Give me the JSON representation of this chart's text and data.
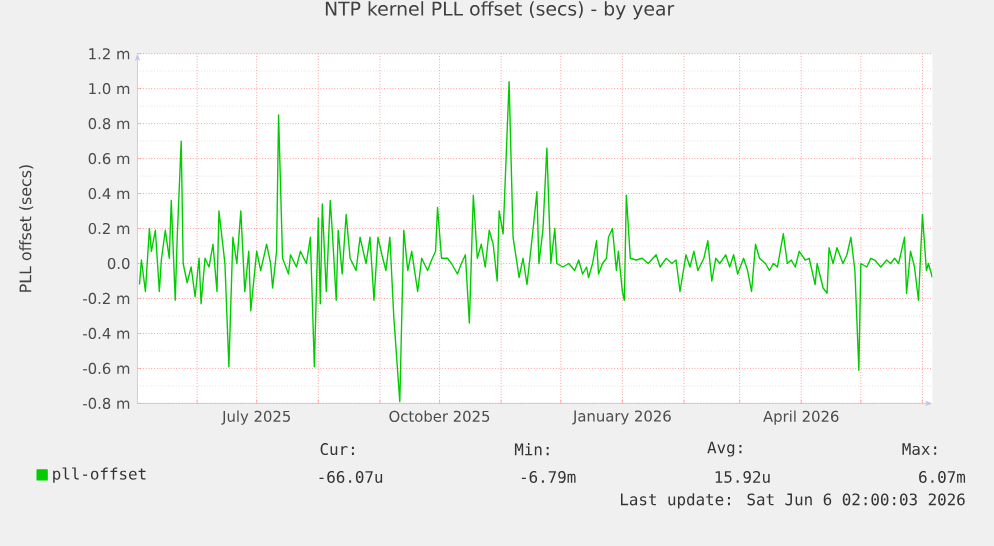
{
  "chart_data": {
    "type": "line",
    "title": "NTP kernel PLL offset (secs) - by year",
    "ylabel": "PLL offset (secs)",
    "x": [
      "2025-05-03",
      "2025-05-04",
      "2025-05-06",
      "2025-05-08",
      "2025-05-09",
      "2025-05-11",
      "2025-05-13",
      "2025-05-14",
      "2025-05-16",
      "2025-05-18",
      "2025-05-19",
      "2025-05-21",
      "2025-05-22",
      "2025-05-24",
      "2025-05-25",
      "2025-05-27",
      "2025-05-29",
      "2025-05-31",
      "2025-06-02",
      "2025-06-03",
      "2025-06-05",
      "2025-06-07",
      "2025-06-09",
      "2025-06-11",
      "2025-06-12",
      "2025-06-15",
      "2025-06-17",
      "2025-06-19",
      "2025-06-21",
      "2025-06-23",
      "2025-06-25",
      "2025-06-27",
      "2025-06-28",
      "2025-07-01",
      "2025-07-03",
      "2025-07-06",
      "2025-07-08",
      "2025-07-09",
      "2025-07-11",
      "2025-07-12",
      "2025-07-14",
      "2025-07-17",
      "2025-07-18",
      "2025-07-21",
      "2025-07-23",
      "2025-07-26",
      "2025-07-28",
      "2025-07-30",
      "2025-08-01",
      "2025-08-02",
      "2025-08-03",
      "2025-08-05",
      "2025-08-07",
      "2025-08-08",
      "2025-08-10",
      "2025-08-11",
      "2025-08-13",
      "2025-08-15",
      "2025-08-17",
      "2025-08-20",
      "2025-08-22",
      "2025-08-25",
      "2025-08-27",
      "2025-08-29",
      "2025-08-31",
      "2025-09-02",
      "2025-09-04",
      "2025-09-06",
      "2025-09-08",
      "2025-09-11",
      "2025-09-13",
      "2025-09-15",
      "2025-09-17",
      "2025-09-20",
      "2025-09-22",
      "2025-09-25",
      "2025-09-27",
      "2025-09-29",
      "2025-09-30",
      "2025-10-02",
      "2025-10-05",
      "2025-10-07",
      "2025-10-10",
      "2025-10-12",
      "2025-10-14",
      "2025-10-16",
      "2025-10-18",
      "2025-10-20",
      "2025-10-22",
      "2025-10-24",
      "2025-10-26",
      "2025-10-28",
      "2025-10-30",
      "2025-10-31",
      "2025-11-02",
      "2025-11-05",
      "2025-11-07",
      "2025-11-09",
      "2025-11-10",
      "2025-11-12",
      "2025-11-14",
      "2025-11-15",
      "2025-11-17",
      "2025-11-19",
      "2025-11-20",
      "2025-11-22",
      "2025-11-24",
      "2025-11-26",
      "2025-11-28",
      "2025-11-29",
      "2025-12-02",
      "2025-12-05",
      "2025-12-08",
      "2025-12-10",
      "2025-12-12",
      "2025-12-14",
      "2025-12-15",
      "2025-12-17",
      "2025-12-19",
      "2025-12-20",
      "2025-12-22",
      "2025-12-24",
      "2025-12-25",
      "2025-12-27",
      "2025-12-29",
      "2025-12-30",
      "2026-01-01",
      "2026-01-02",
      "2026-01-03",
      "2026-01-05",
      "2026-01-08",
      "2026-01-11",
      "2026-01-14",
      "2026-01-18",
      "2026-01-20",
      "2026-01-23",
      "2026-01-26",
      "2026-01-28",
      "2026-01-30",
      "2026-02-02",
      "2026-02-04",
      "2026-02-06",
      "2026-02-08",
      "2026-02-11",
      "2026-02-13",
      "2026-02-15",
      "2026-02-17",
      "2026-02-19",
      "2026-02-22",
      "2026-02-24",
      "2026-02-26",
      "2026-02-28",
      "2026-03-03",
      "2026-03-05",
      "2026-03-07",
      "2026-03-09",
      "2026-03-11",
      "2026-03-14",
      "2026-03-16",
      "2026-03-18",
      "2026-03-20",
      "2026-03-23",
      "2026-03-25",
      "2026-03-27",
      "2026-03-29",
      "2026-03-31",
      "2026-04-03",
      "2026-04-05",
      "2026-04-08",
      "2026-04-09",
      "2026-04-12",
      "2026-04-14",
      "2026-04-15",
      "2026-04-17",
      "2026-04-19",
      "2026-04-22",
      "2026-04-24",
      "2026-04-26",
      "2026-04-28",
      "2026-04-30",
      "2026-05-01",
      "2026-05-04",
      "2026-05-06",
      "2026-05-08",
      "2026-05-11",
      "2026-05-14",
      "2026-05-16",
      "2026-05-18",
      "2026-05-20",
      "2026-05-23",
      "2026-05-24",
      "2026-05-26",
      "2026-05-28",
      "2026-05-30",
      "2026-06-01",
      "2026-06-03",
      "2026-06-04",
      "2026-06-06"
    ],
    "series": [
      {
        "name": "pll-offset",
        "color": "#00cc00",
        "values": [
          -0.12,
          0.02,
          -0.16,
          0.2,
          0.07,
          0.19,
          -0.16,
          0.02,
          0.19,
          0.03,
          0.36,
          -0.21,
          0.15,
          0.7,
          0.0,
          -0.11,
          -0.02,
          -0.19,
          0.03,
          -0.23,
          0.03,
          -0.02,
          0.11,
          -0.16,
          0.3,
          0.0,
          -0.59,
          0.15,
          0.0,
          0.3,
          -0.16,
          0.07,
          -0.27,
          0.07,
          -0.04,
          0.11,
          0.0,
          -0.14,
          0.07,
          0.85,
          0.03,
          -0.06,
          0.05,
          -0.02,
          0.07,
          0.0,
          0.15,
          -0.59,
          0.26,
          -0.23,
          0.34,
          -0.16,
          0.36,
          0.19,
          -0.21,
          0.19,
          -0.06,
          0.28,
          0.03,
          -0.04,
          0.15,
          0.0,
          0.15,
          -0.21,
          0.15,
          0.05,
          -0.04,
          0.15,
          -0.31,
          -0.79,
          0.19,
          -0.04,
          0.07,
          -0.16,
          0.03,
          -0.04,
          0.02,
          0.07,
          0.32,
          0.03,
          0.03,
          0.0,
          -0.06,
          0.0,
          0.05,
          -0.34,
          0.39,
          0.03,
          0.11,
          -0.02,
          0.19,
          0.11,
          -0.1,
          0.3,
          0.17,
          1.04,
          0.15,
          0.0,
          -0.08,
          0.03,
          -0.12,
          -0.02,
          0.19,
          0.41,
          0.0,
          0.19,
          0.66,
          0.0,
          0.2,
          0.0,
          -0.02,
          0.0,
          -0.04,
          0.02,
          -0.06,
          -0.02,
          -0.08,
          0.0,
          0.13,
          -0.06,
          0.0,
          0.03,
          0.15,
          0.2,
          -0.04,
          0.07,
          -0.16,
          -0.21,
          0.39,
          0.03,
          0.02,
          0.03,
          0.0,
          0.05,
          -0.02,
          0.03,
          0.0,
          0.02,
          -0.16,
          0.05,
          -0.02,
          0.07,
          -0.04,
          0.03,
          0.13,
          -0.1,
          0.03,
          0.0,
          0.05,
          -0.02,
          0.05,
          -0.06,
          0.03,
          -0.04,
          -0.16,
          0.11,
          0.03,
          0.0,
          -0.04,
          0.0,
          -0.02,
          0.17,
          0.0,
          0.02,
          -0.02,
          0.07,
          0.02,
          0.03,
          -0.12,
          0.0,
          -0.14,
          -0.17,
          0.09,
          0.0,
          0.09,
          0.0,
          0.05,
          0.15,
          -0.04,
          -0.61,
          0.0,
          -0.02,
          0.03,
          0.02,
          -0.02,
          0.02,
          0.0,
          0.03,
          0.0,
          0.15,
          -0.17,
          0.07,
          -0.02,
          -0.21,
          0.28,
          -0.04,
          0.0,
          -0.08
        ]
      }
    ],
    "xlim": [
      "2025-05-02",
      "2026-06-06"
    ],
    "xticks": [
      {
        "value": "2025-06-01",
        "label": null
      },
      {
        "value": "2025-07-01",
        "label": "July 2025"
      },
      {
        "value": "2025-08-01",
        "label": null
      },
      {
        "value": "2025-09-01",
        "label": null
      },
      {
        "value": "2025-10-01",
        "label": "October 2025"
      },
      {
        "value": "2025-11-01",
        "label": null
      },
      {
        "value": "2025-12-01",
        "label": null
      },
      {
        "value": "2026-01-01",
        "label": "January 2026"
      },
      {
        "value": "2026-02-01",
        "label": null
      },
      {
        "value": "2026-03-01",
        "label": null
      },
      {
        "value": "2026-04-01",
        "label": "April 2026"
      },
      {
        "value": "2026-05-01",
        "label": null
      },
      {
        "value": "2026-06-01",
        "label": null
      }
    ],
    "ylim": [
      -0.8,
      1.2
    ],
    "yticks": [
      {
        "value": -0.8,
        "label": "-0.8 m"
      },
      {
        "value": -0.6,
        "label": "-0.6 m"
      },
      {
        "value": -0.4,
        "label": "-0.4 m"
      },
      {
        "value": -0.2,
        "label": "-0.2 m"
      },
      {
        "value": 0,
        "label": "0.0"
      },
      {
        "value": 0.2,
        "label": "0.2 m"
      },
      {
        "value": 0.4,
        "label": "0.4 m"
      },
      {
        "value": 0.6,
        "label": "0.6 m"
      },
      {
        "value": 0.8,
        "label": "0.8 m"
      },
      {
        "value": 1.0,
        "label": "1.0 m"
      },
      {
        "value": 1.2,
        "label": "1.2 m"
      }
    ],
    "grid": true,
    "legend": "bottom left",
    "marker": "none",
    "line_style": "solid",
    "annotations": [
      "Cur:",
      "Min:",
      "Avg:",
      "Max:",
      "-66.07u",
      "-6.79m",
      "15.92u",
      "6.07m",
      "Last update: Sat Jun 6 02:00:03 2026"
    ]
  }
}
